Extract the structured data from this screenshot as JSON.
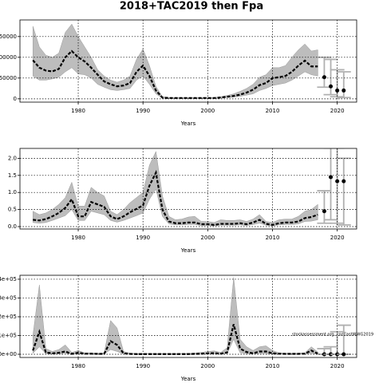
{
  "title": "2018+TAC2019 then Fpa",
  "annotation": "stockassessment.org, codEastWWG2019",
  "chart_data": [
    {
      "type": "line",
      "xlabel": "Years",
      "x": [
        1973,
        1974,
        1975,
        1976,
        1977,
        1978,
        1979,
        1980,
        1981,
        1982,
        1983,
        1984,
        1985,
        1986,
        1987,
        1988,
        1989,
        1990,
        1991,
        1992,
        1993,
        1994,
        1995,
        1996,
        1997,
        1998,
        1999,
        2000,
        2001,
        2002,
        2003,
        2004,
        2005,
        2006,
        2007,
        2008,
        2009,
        2010,
        2011,
        2012,
        2013,
        2014,
        2015,
        2016,
        2017
      ],
      "median": [
        93000,
        75000,
        68000,
        66000,
        72000,
        100000,
        115000,
        100000,
        90000,
        75000,
        58000,
        42000,
        35000,
        30000,
        32000,
        38000,
        65000,
        80000,
        55000,
        20000,
        3000,
        2000,
        2000,
        2000,
        2000,
        2000,
        2000,
        2000,
        2000,
        3000,
        5000,
        7000,
        10000,
        15000,
        22000,
        33000,
        38000,
        50000,
        52000,
        55000,
        65000,
        80000,
        92000,
        78000,
        78000
      ],
      "upper": [
        175000,
        125000,
        105000,
        100000,
        110000,
        160000,
        180000,
        150000,
        125000,
        100000,
        70000,
        55000,
        45000,
        40000,
        45000,
        55000,
        95000,
        120000,
        80000,
        30000,
        5000,
        3000,
        3000,
        3000,
        3000,
        3000,
        3000,
        3000,
        3000,
        5000,
        8000,
        12000,
        18000,
        25000,
        35000,
        52000,
        58000,
        75000,
        75000,
        80000,
        100000,
        118000,
        132000,
        115000,
        118000
      ],
      "lower": [
        55000,
        45000,
        45000,
        48000,
        52000,
        65000,
        75000,
        60000,
        58000,
        50000,
        35000,
        28000,
        22000,
        20000,
        22000,
        25000,
        45000,
        55000,
        35000,
        12000,
        1000,
        1000,
        1000,
        1000,
        1000,
        1000,
        1000,
        1000,
        1000,
        1500,
        3000,
        4000,
        6000,
        9000,
        12000,
        20000,
        25000,
        32000,
        35000,
        38000,
        45000,
        55000,
        65000,
        58000,
        55000
      ],
      "proj_x": [
        2018,
        2019,
        2020,
        2021
      ],
      "proj_values": [
        52000,
        30000,
        20000,
        20000
      ],
      "proj_low": [
        28000,
        10000,
        5000,
        3000
      ],
      "proj_high": [
        100000,
        95000,
        70000,
        65000
      ],
      "band_color": "#bdbdbd",
      "line_color": "#000000",
      "proj_color": "#b0b0b0",
      "xlim": [
        1971,
        2023
      ],
      "xticks": [
        1980,
        1990,
        2000,
        2010,
        2020
      ],
      "ylim": [
        -8000,
        190000
      ],
      "yticks": [
        0,
        50000,
        100000,
        150000
      ],
      "grid": true
    },
    {
      "type": "line",
      "xlabel": "Years",
      "x": [
        1973,
        1974,
        1975,
        1976,
        1977,
        1978,
        1979,
        1980,
        1981,
        1982,
        1983,
        1984,
        1985,
        1986,
        1987,
        1988,
        1989,
        1990,
        1991,
        1992,
        1993,
        1994,
        1995,
        1996,
        1997,
        1998,
        1999,
        2000,
        2001,
        2002,
        2003,
        2004,
        2005,
        2006,
        2007,
        2008,
        2009,
        2010,
        2011,
        2012,
        2013,
        2014,
        2015,
        2016,
        2017
      ],
      "median": [
        0.2,
        0.18,
        0.22,
        0.3,
        0.4,
        0.55,
        0.8,
        0.3,
        0.3,
        0.72,
        0.65,
        0.58,
        0.3,
        0.22,
        0.3,
        0.42,
        0.52,
        0.62,
        1.2,
        1.58,
        0.5,
        0.15,
        0.1,
        0.1,
        0.12,
        0.12,
        0.07,
        0.07,
        0.05,
        0.08,
        0.08,
        0.08,
        0.1,
        0.07,
        0.12,
        0.2,
        0.08,
        0.05,
        0.1,
        0.12,
        0.12,
        0.15,
        0.25,
        0.28,
        0.35
      ],
      "upper": [
        0.45,
        0.35,
        0.4,
        0.5,
        0.65,
        0.85,
        1.3,
        0.6,
        0.6,
        1.15,
        1.0,
        0.9,
        0.45,
        0.35,
        0.5,
        0.7,
        0.85,
        1.0,
        1.8,
        2.2,
        0.9,
        0.3,
        0.2,
        0.22,
        0.28,
        0.3,
        0.15,
        0.15,
        0.12,
        0.2,
        0.18,
        0.18,
        0.2,
        0.15,
        0.22,
        0.35,
        0.15,
        0.12,
        0.2,
        0.22,
        0.22,
        0.3,
        0.45,
        0.5,
        0.65
      ],
      "lower": [
        0.12,
        0.1,
        0.12,
        0.18,
        0.25,
        0.32,
        0.5,
        0.18,
        0.18,
        0.45,
        0.4,
        0.35,
        0.18,
        0.13,
        0.18,
        0.25,
        0.32,
        0.4,
        0.8,
        1.1,
        0.3,
        0.08,
        0.05,
        0.05,
        0.06,
        0.06,
        0.03,
        0.03,
        0.02,
        0.04,
        0.04,
        0.04,
        0.05,
        0.03,
        0.06,
        0.1,
        0.04,
        0.02,
        0.05,
        0.06,
        0.06,
        0.08,
        0.15,
        0.16,
        0.2
      ],
      "proj_x": [
        2018,
        2019,
        2020,
        2021
      ],
      "proj_values": [
        0.45,
        1.45,
        1.33,
        1.33
      ],
      "proj_low": [
        0.1,
        0.2,
        0.1,
        0.05
      ],
      "proj_high": [
        1.05,
        2.3,
        2.3,
        2.0
      ],
      "band_color": "#bdbdbd",
      "line_color": "#000000",
      "proj_color": "#b0b0b0",
      "xlim": [
        1971,
        2023
      ],
      "xticks": [
        1980,
        1990,
        2000,
        2010,
        2020
      ],
      "ylim": [
        -0.07,
        2.29
      ],
      "yticks": [
        {
          "value": 0,
          "label": "0.0"
        },
        0.5,
        {
          "value": 1,
          "label": "1.0"
        },
        1.5,
        {
          "value": 2,
          "label": "2.0"
        }
      ],
      "grid": true
    },
    {
      "type": "line",
      "xlabel": "Years",
      "x": [
        1973,
        1974,
        1975,
        1976,
        1977,
        1978,
        1979,
        1980,
        1981,
        1982,
        1983,
        1984,
        1985,
        1986,
        1987,
        1988,
        1989,
        1990,
        1991,
        1992,
        1993,
        1994,
        1995,
        1996,
        1997,
        1998,
        1999,
        2000,
        2001,
        2002,
        2003,
        2004,
        2005,
        2006,
        2007,
        2008,
        2009,
        2010,
        2011,
        2012,
        2013,
        2014,
        2015,
        2016,
        2017
      ],
      "median": [
        20000,
        120000,
        10000,
        5000,
        8000,
        15000,
        2000,
        8000,
        3000,
        3000,
        2000,
        2000,
        70000,
        50000,
        5000,
        2000,
        1000,
        1000,
        1000,
        1000,
        1000,
        1000,
        1000,
        1000,
        1000,
        2000,
        3000,
        5000,
        6000,
        3000,
        10000,
        160000,
        30000,
        12000,
        5000,
        15000,
        15000,
        5000,
        3000,
        2000,
        2000,
        2000,
        3000,
        20000,
        3000
      ],
      "upper": [
        100000,
        370000,
        30000,
        15000,
        25000,
        50000,
        10000,
        20000,
        8000,
        8000,
        6000,
        6000,
        180000,
        140000,
        15000,
        6000,
        4000,
        4000,
        4000,
        4000,
        4000,
        4000,
        4000,
        4000,
        5000,
        7000,
        10000,
        15000,
        18000,
        10000,
        35000,
        410000,
        80000,
        40000,
        20000,
        40000,
        45000,
        20000,
        8000,
        6000,
        6000,
        6000,
        8000,
        40000,
        12000
      ],
      "lower": [
        5000,
        40000,
        3000,
        1000,
        2000,
        5000,
        500,
        2000,
        800,
        800,
        500,
        500,
        25000,
        15000,
        1000,
        500,
        300,
        300,
        300,
        300,
        300,
        300,
        300,
        300,
        300,
        500,
        800,
        1500,
        2000,
        800,
        3000,
        80000,
        8000,
        3000,
        1500,
        4000,
        4000,
        1500,
        800,
        500,
        500,
        500,
        800,
        5000,
        800
      ],
      "proj_x": [
        2018,
        2019,
        2020,
        2021
      ],
      "proj_values": [
        0,
        0,
        0,
        0
      ],
      "proj_low": [
        0,
        0,
        0,
        0
      ],
      "proj_high": [
        30000,
        40000,
        120000,
        155000
      ],
      "band_color": "#bdbdbd",
      "line_color": "#000000",
      "proj_color": "#b0b0b0",
      "xlim": [
        1971,
        2023
      ],
      "xticks": [
        1980,
        1990,
        2000,
        2010,
        2020
      ],
      "ylim": [
        -17000,
        421000
      ],
      "yticks": [
        {
          "value": 0,
          "label": "0e+00"
        },
        {
          "value": 100000,
          "label": "1e+05"
        },
        {
          "value": 200000,
          "label": "2e+05"
        },
        {
          "value": 300000,
          "label": "3e+05"
        },
        {
          "value": 400000,
          "label": "4e+05"
        }
      ],
      "grid": true
    }
  ]
}
